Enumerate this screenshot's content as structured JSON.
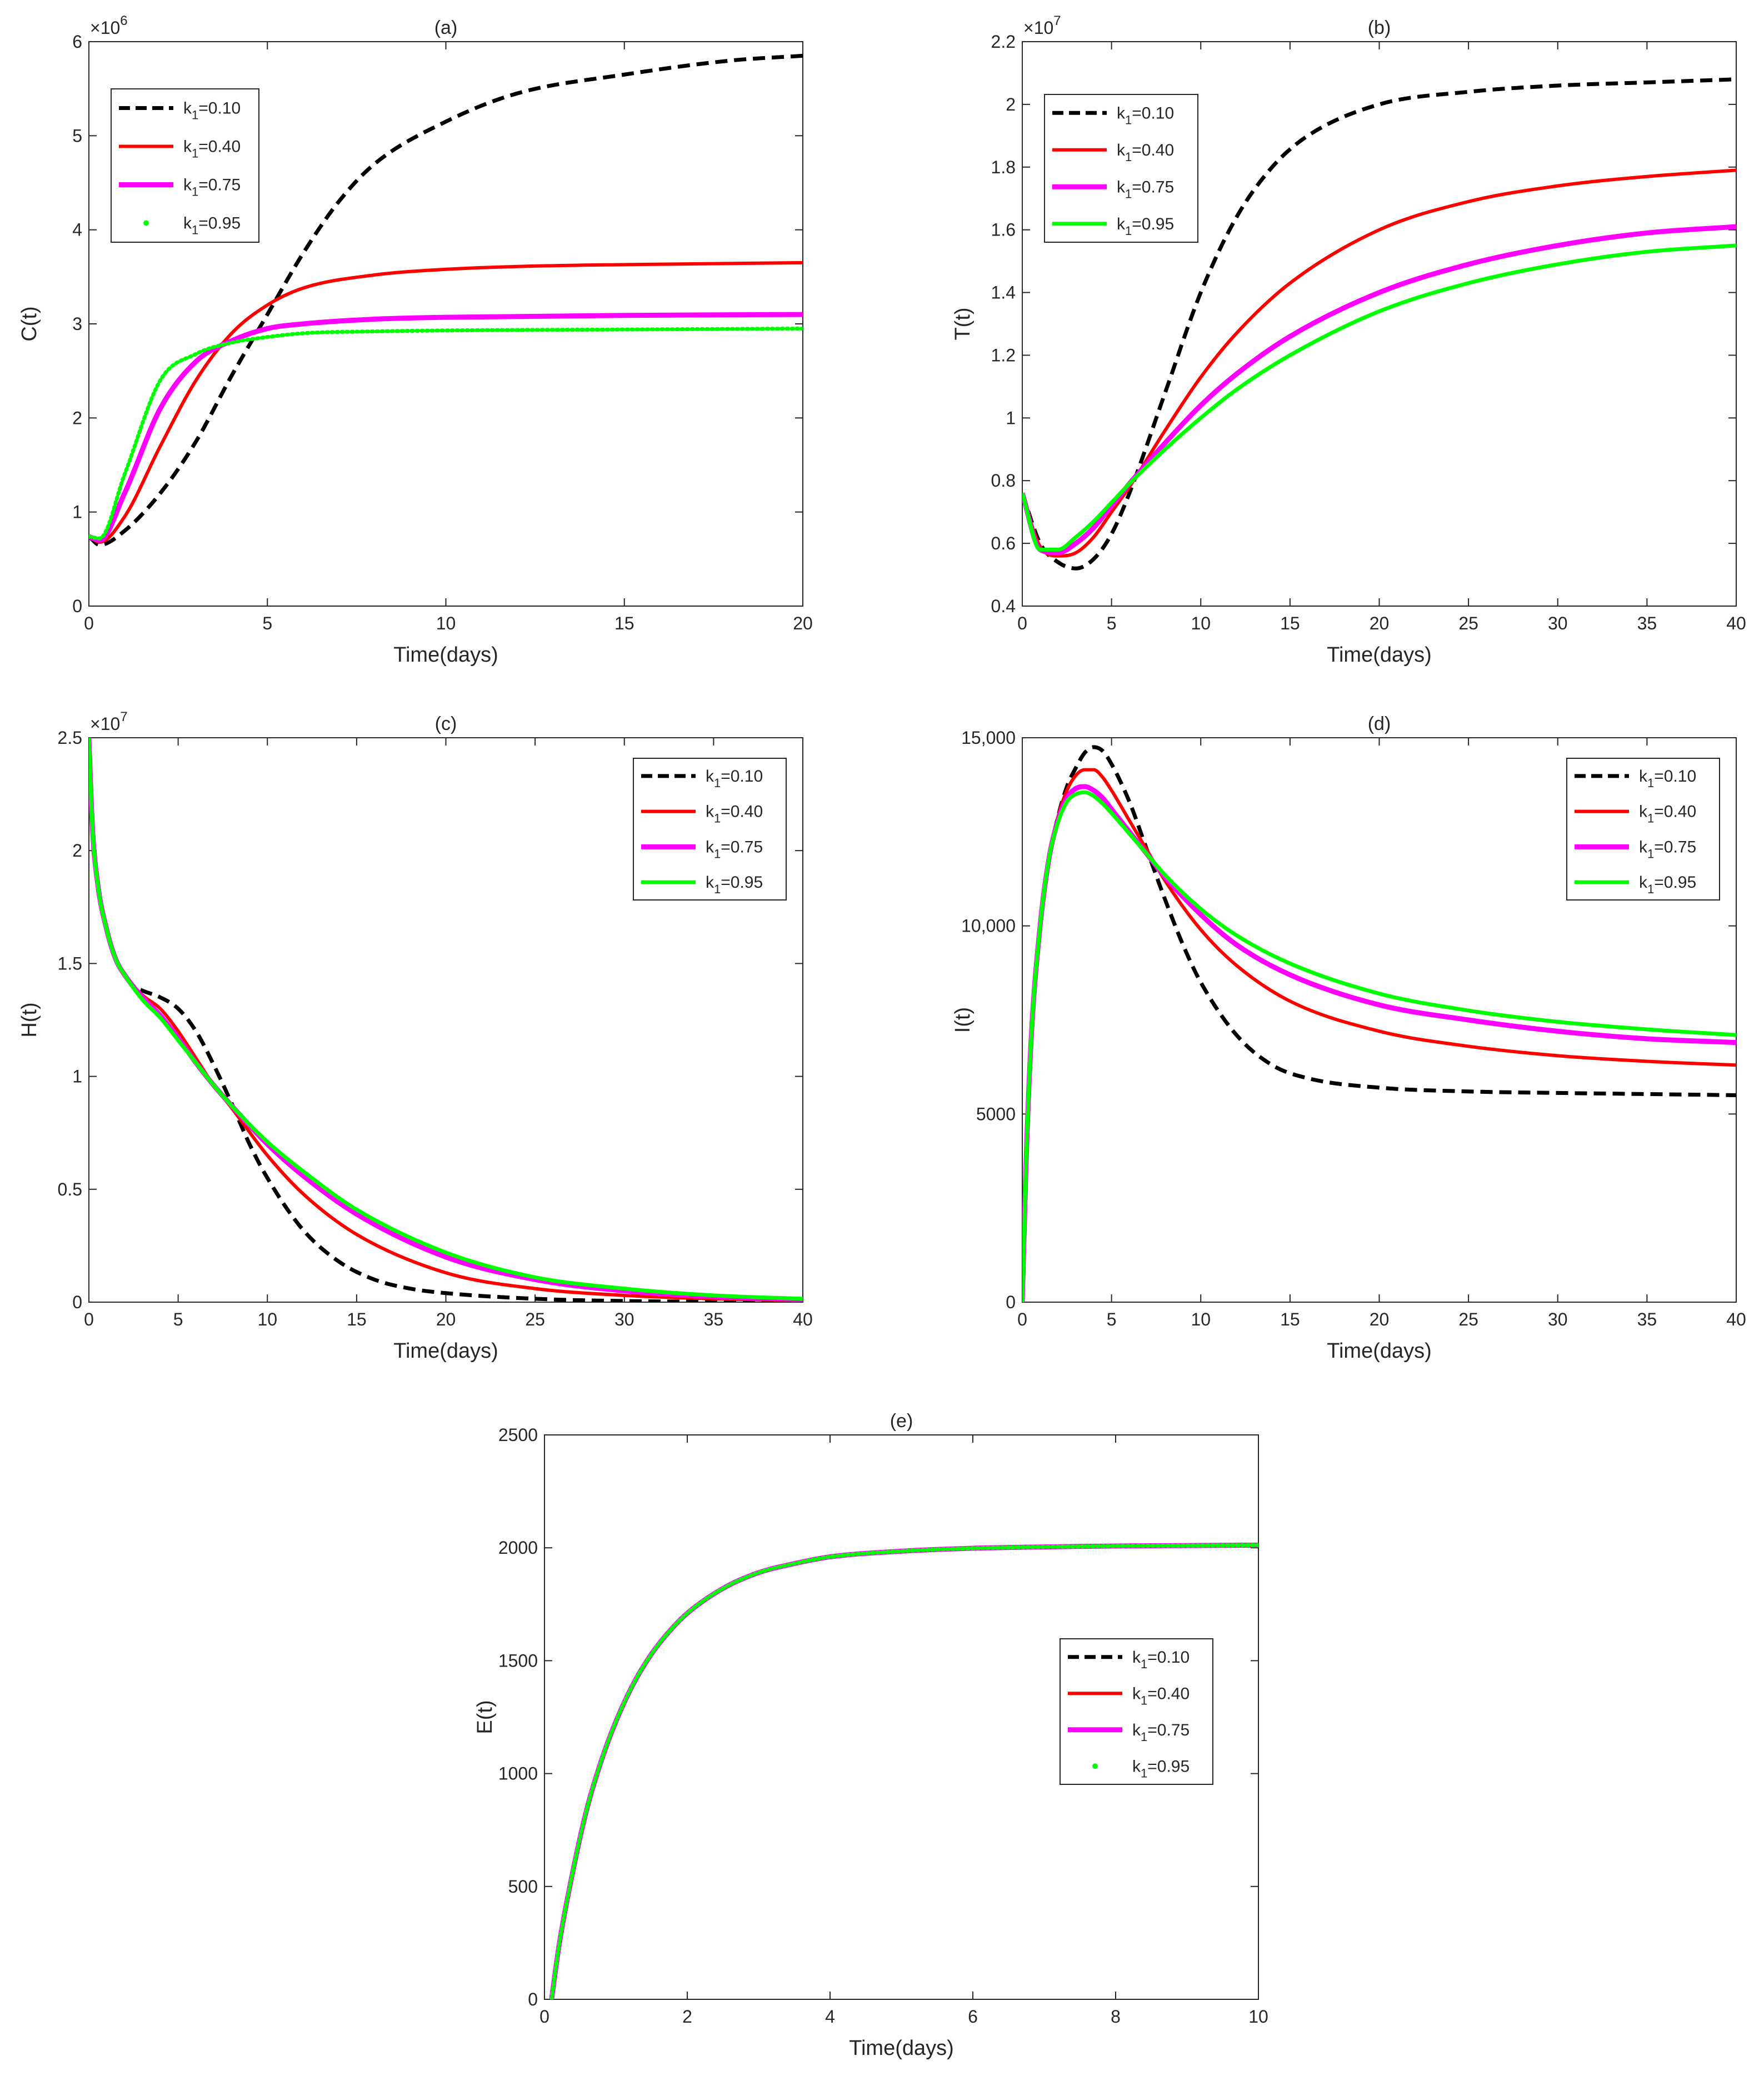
{
  "figure": {
    "x_label": "Time(days)",
    "legend_prefix": "k",
    "legend_subscript": "1"
  },
  "colors": {
    "k1_0.10": "#000000",
    "k1_0.40": "#ff0000",
    "k1_0.75": "#ff00ff",
    "k1_0.95": "#00ff00",
    "axis": "#262626"
  },
  "chart_data": [
    {
      "id": "a",
      "type": "line",
      "title": "(a)",
      "xlabel": "Time(days)",
      "ylabel": "C(t)",
      "xlim": [
        0,
        20
      ],
      "ylim": [
        0,
        6
      ],
      "exponent": "×10",
      "exponent_power": "6",
      "xticks": [
        0,
        5,
        10,
        15,
        20
      ],
      "yticks": [
        0,
        1,
        2,
        3,
        4,
        5,
        6
      ],
      "ytick_labels": [
        "0",
        "1",
        "2",
        "3",
        "4",
        "5",
        "6"
      ],
      "legend_location": "upper-left",
      "series": [
        {
          "name": "k1=0.10",
          "value_label": "=0.10",
          "style": "dashed",
          "x": [
            0,
            0.3,
            1,
            2,
            3,
            4,
            5,
            6,
            7,
            8,
            10,
            12,
            15,
            18,
            20
          ],
          "y": [
            0.74,
            0.65,
            0.8,
            1.2,
            1.75,
            2.45,
            3.1,
            3.75,
            4.3,
            4.7,
            5.15,
            5.45,
            5.65,
            5.8,
            5.85
          ]
        },
        {
          "name": "k1=0.40",
          "value_label": "=0.40",
          "style": "solid",
          "x": [
            0,
            0.3,
            1,
            2,
            3,
            4,
            5,
            6,
            8,
            10,
            12,
            15,
            20
          ],
          "y": [
            0.74,
            0.68,
            0.95,
            1.7,
            2.4,
            2.9,
            3.2,
            3.38,
            3.52,
            3.58,
            3.61,
            3.63,
            3.65
          ]
        },
        {
          "name": "k1=0.75",
          "value_label": "=0.75",
          "style": "solid",
          "x": [
            0,
            0.3,
            1,
            2,
            3,
            4,
            5,
            6,
            8,
            10,
            15,
            20
          ],
          "y": [
            0.74,
            0.7,
            1.2,
            2.1,
            2.6,
            2.82,
            2.95,
            3.0,
            3.05,
            3.07,
            3.09,
            3.1
          ]
        },
        {
          "name": "k1=0.95",
          "value_label": "=0.95",
          "style": "dotted",
          "x": [
            0,
            0.3,
            1,
            2,
            3,
            4,
            5,
            6,
            8,
            10,
            15,
            20
          ],
          "y": [
            0.74,
            0.72,
            1.4,
            2.4,
            2.68,
            2.8,
            2.86,
            2.9,
            2.92,
            2.93,
            2.94,
            2.95
          ]
        }
      ]
    },
    {
      "id": "b",
      "type": "line",
      "title": "(b)",
      "xlabel": "Time(days)",
      "ylabel": "T(t)",
      "xlim": [
        0,
        40
      ],
      "ylim": [
        0.4,
        2.2
      ],
      "exponent": "×10",
      "exponent_power": "7",
      "xticks": [
        0,
        5,
        10,
        15,
        20,
        25,
        30,
        35,
        40
      ],
      "yticks": [
        0.4,
        0.6,
        0.8,
        1,
        1.2,
        1.4,
        1.6,
        1.8,
        2,
        2.2
      ],
      "ytick_labels": [
        "0.4",
        "0.6",
        "0.8",
        "1",
        "1.2",
        "1.4",
        "1.6",
        "1.8",
        "2",
        "2.2"
      ],
      "legend_location": "upper-left",
      "series": [
        {
          "name": "k1=0.10",
          "value_label": "=0.10",
          "style": "dashed",
          "x": [
            0,
            1,
            2,
            3,
            4,
            5,
            6,
            8,
            10,
            12,
            14,
            16,
            20,
            25,
            30,
            35,
            40
          ],
          "y": [
            0.76,
            0.6,
            0.54,
            0.52,
            0.55,
            0.63,
            0.76,
            1.08,
            1.4,
            1.64,
            1.8,
            1.9,
            2.0,
            2.04,
            2.06,
            2.07,
            2.08
          ]
        },
        {
          "name": "k1=0.40",
          "value_label": "=0.40",
          "style": "solid",
          "x": [
            0,
            1,
            2,
            3,
            4,
            5,
            6,
            8,
            10,
            12,
            15,
            20,
            25,
            30,
            35,
            40
          ],
          "y": [
            0.76,
            0.59,
            0.56,
            0.57,
            0.62,
            0.7,
            0.78,
            0.96,
            1.13,
            1.27,
            1.43,
            1.6,
            1.69,
            1.74,
            1.77,
            1.79
          ]
        },
        {
          "name": "k1=0.75",
          "value_label": "=0.75",
          "style": "solid",
          "x": [
            0,
            1,
            2,
            3,
            4,
            5,
            6,
            8,
            10,
            12,
            15,
            20,
            25,
            30,
            35,
            40
          ],
          "y": [
            0.76,
            0.58,
            0.57,
            0.6,
            0.65,
            0.72,
            0.79,
            0.92,
            1.04,
            1.14,
            1.26,
            1.4,
            1.49,
            1.55,
            1.59,
            1.61
          ]
        },
        {
          "name": "k1=0.95",
          "value_label": "=0.95",
          "style": "solid",
          "x": [
            0,
            1,
            2,
            3,
            4,
            5,
            6,
            8,
            10,
            12,
            15,
            20,
            25,
            30,
            35,
            40
          ],
          "y": [
            0.76,
            0.58,
            0.58,
            0.62,
            0.67,
            0.73,
            0.79,
            0.9,
            1.0,
            1.09,
            1.2,
            1.34,
            1.43,
            1.49,
            1.53,
            1.55
          ]
        }
      ]
    },
    {
      "id": "c",
      "type": "line",
      "title": "(c)",
      "xlabel": "Time(days)",
      "ylabel": "H(t)",
      "xlim": [
        0,
        40
      ],
      "ylim": [
        0,
        2.5
      ],
      "exponent": "×10",
      "exponent_power": "7",
      "xticks": [
        0,
        5,
        10,
        15,
        20,
        25,
        30,
        35,
        40
      ],
      "yticks": [
        0,
        0.5,
        1,
        1.5,
        2,
        2.5
      ],
      "ytick_labels": [
        "0",
        "0.5",
        "1",
        "1.5",
        "2",
        "2.5"
      ],
      "legend_location": "upper-right",
      "series": [
        {
          "name": "k1=0.10",
          "value_label": "=0.10",
          "style": "dashed",
          "x": [
            0,
            0.2,
            0.5,
            1,
            1.5,
            2,
            2.5,
            3,
            4,
            5,
            6,
            7,
            8,
            9,
            10,
            12,
            14,
            16,
            18,
            20,
            25,
            30,
            35,
            40
          ],
          "y": [
            2.5,
            2.1,
            1.85,
            1.65,
            1.52,
            1.45,
            1.4,
            1.38,
            1.35,
            1.3,
            1.2,
            1.05,
            0.88,
            0.7,
            0.55,
            0.32,
            0.18,
            0.1,
            0.06,
            0.04,
            0.015,
            0.005,
            0.002,
            0.001
          ]
        },
        {
          "name": "k1=0.40",
          "value_label": "=0.40",
          "style": "solid",
          "x": [
            0,
            0.2,
            0.5,
            1,
            1.5,
            2,
            3,
            4,
            5,
            6,
            7,
            8,
            10,
            12,
            15,
            20,
            25,
            30,
            35,
            40
          ],
          "y": [
            2.5,
            2.1,
            1.85,
            1.65,
            1.52,
            1.45,
            1.36,
            1.3,
            1.2,
            1.08,
            0.96,
            0.86,
            0.65,
            0.48,
            0.3,
            0.13,
            0.06,
            0.03,
            0.015,
            0.008
          ]
        },
        {
          "name": "k1=0.75",
          "value_label": "=0.75",
          "style": "solid",
          "x": [
            0,
            0.2,
            0.5,
            1,
            1.5,
            2,
            3,
            4,
            5,
            6,
            7,
            8,
            10,
            12,
            15,
            20,
            25,
            30,
            35,
            40
          ],
          "y": [
            2.5,
            2.1,
            1.85,
            1.65,
            1.52,
            1.45,
            1.35,
            1.27,
            1.17,
            1.06,
            0.96,
            0.87,
            0.7,
            0.56,
            0.39,
            0.2,
            0.1,
            0.05,
            0.025,
            0.012
          ]
        },
        {
          "name": "k1=0.95",
          "value_label": "=0.95",
          "style": "solid",
          "x": [
            0,
            0.2,
            0.5,
            1,
            1.5,
            2,
            3,
            4,
            5,
            6,
            7,
            8,
            10,
            12,
            15,
            20,
            25,
            30,
            35,
            40
          ],
          "y": [
            2.5,
            2.1,
            1.85,
            1.65,
            1.52,
            1.45,
            1.34,
            1.26,
            1.16,
            1.06,
            0.96,
            0.87,
            0.71,
            0.58,
            0.41,
            0.22,
            0.11,
            0.06,
            0.03,
            0.015
          ]
        }
      ]
    },
    {
      "id": "d",
      "type": "line",
      "title": "(d)",
      "xlabel": "Time(days)",
      "ylabel": "I(t)",
      "xlim": [
        0,
        40
      ],
      "ylim": [
        0,
        15000
      ],
      "exponent": "",
      "exponent_power": "",
      "xticks": [
        0,
        5,
        10,
        15,
        20,
        25,
        30,
        35,
        40
      ],
      "yticks": [
        0,
        5000,
        10000,
        15000
      ],
      "ytick_labels": [
        "0",
        "5000",
        "10,000",
        "15,000"
      ],
      "legend_location": "upper-right",
      "series": [
        {
          "name": "k1=0.10",
          "value_label": "=0.10",
          "style": "dashed",
          "x": [
            0,
            0.2,
            0.5,
            1,
            1.5,
            2,
            2.5,
            3,
            3.5,
            4,
            4.5,
            5,
            6,
            7,
            8,
            9,
            10,
            12,
            14,
            16,
            20,
            25,
            30,
            35,
            40
          ],
          "y": [
            0,
            3500,
            7000,
            10000,
            11800,
            12900,
            13700,
            14200,
            14600,
            14750,
            14650,
            14300,
            13300,
            12000,
            10700,
            9500,
            8500,
            7100,
            6300,
            5950,
            5700,
            5600,
            5560,
            5530,
            5500
          ]
        },
        {
          "name": "k1=0.40",
          "value_label": "=0.40",
          "style": "solid",
          "x": [
            0,
            0.2,
            0.5,
            1,
            1.5,
            2,
            2.5,
            3,
            3.5,
            4,
            4.5,
            5,
            6,
            7,
            8,
            10,
            12,
            15,
            20,
            25,
            30,
            35,
            40
          ],
          "y": [
            0,
            3500,
            7000,
            10000,
            11800,
            12900,
            13600,
            14000,
            14150,
            14150,
            13950,
            13600,
            12800,
            12000,
            11200,
            9900,
            8950,
            8000,
            7200,
            6800,
            6550,
            6400,
            6300
          ]
        },
        {
          "name": "k1=0.75",
          "value_label": "=0.75",
          "style": "solid",
          "x": [
            0,
            0.2,
            0.5,
            1,
            1.5,
            2,
            2.5,
            3,
            3.5,
            4,
            4.5,
            5,
            6,
            7,
            8,
            10,
            12,
            15,
            20,
            25,
            30,
            35,
            40
          ],
          "y": [
            0,
            3500,
            7000,
            10000,
            11800,
            12800,
            13400,
            13650,
            13700,
            13600,
            13400,
            13100,
            12500,
            11900,
            11300,
            10300,
            9500,
            8700,
            7900,
            7500,
            7200,
            7000,
            6900
          ]
        },
        {
          "name": "k1=0.95",
          "value_label": "=0.95",
          "style": "solid",
          "x": [
            0,
            0.2,
            0.5,
            1,
            1.5,
            2,
            2.5,
            3,
            3.5,
            4,
            4.5,
            5,
            6,
            7,
            8,
            10,
            12,
            15,
            20,
            25,
            30,
            35,
            40
          ],
          "y": [
            0,
            3500,
            7000,
            10000,
            11800,
            12750,
            13300,
            13500,
            13550,
            13450,
            13250,
            13000,
            12450,
            11900,
            11350,
            10450,
            9750,
            9000,
            8200,
            7750,
            7450,
            7250,
            7100
          ]
        }
      ]
    },
    {
      "id": "e",
      "type": "line",
      "title": "(e)",
      "xlabel": "Time(days)",
      "ylabel": "E(t)",
      "xlim": [
        0,
        10
      ],
      "ylim": [
        0,
        2500
      ],
      "exponent": "",
      "exponent_power": "",
      "xticks": [
        0,
        2,
        4,
        6,
        8,
        10
      ],
      "yticks": [
        0,
        500,
        1000,
        1500,
        2000,
        2500
      ],
      "ytick_labels": [
        "0",
        "500",
        "1000",
        "1500",
        "2000",
        "2500"
      ],
      "legend_location": "middle-right",
      "series": [
        {
          "name": "k1=0.10",
          "value_label": "=0.10",
          "style": "dashed",
          "x": [
            0.1,
            0.2,
            0.4,
            0.6,
            0.8,
            1,
            1.25,
            1.5,
            1.75,
            2,
            2.5,
            3,
            3.5,
            4,
            5,
            6,
            7,
            8,
            9,
            10
          ],
          "y": [
            0,
            230,
            570,
            850,
            1060,
            1230,
            1400,
            1530,
            1630,
            1710,
            1820,
            1890,
            1930,
            1960,
            1985,
            1998,
            2004,
            2008,
            2010,
            2012
          ]
        },
        {
          "name": "k1=0.40",
          "value_label": "=0.40",
          "style": "solid",
          "x": [
            0.1,
            0.2,
            0.4,
            0.6,
            0.8,
            1,
            1.25,
            1.5,
            1.75,
            2,
            2.5,
            3,
            3.5,
            4,
            5,
            6,
            7,
            8,
            9,
            10
          ],
          "y": [
            0,
            230,
            570,
            850,
            1060,
            1230,
            1400,
            1530,
            1630,
            1710,
            1820,
            1890,
            1930,
            1960,
            1985,
            1998,
            2004,
            2008,
            2010,
            2012
          ]
        },
        {
          "name": "k1=0.75",
          "value_label": "=0.75",
          "style": "solid",
          "x": [
            0.1,
            0.2,
            0.4,
            0.6,
            0.8,
            1,
            1.25,
            1.5,
            1.75,
            2,
            2.5,
            3,
            3.5,
            4,
            5,
            6,
            7,
            8,
            9,
            10
          ],
          "y": [
            0,
            230,
            570,
            850,
            1060,
            1230,
            1400,
            1530,
            1630,
            1710,
            1820,
            1890,
            1930,
            1960,
            1985,
            1998,
            2004,
            2008,
            2010,
            2012
          ]
        },
        {
          "name": "k1=0.95",
          "value_label": "=0.95",
          "style": "dotted",
          "x": [
            0.1,
            0.2,
            0.4,
            0.6,
            0.8,
            1,
            1.25,
            1.5,
            1.75,
            2,
            2.5,
            3,
            3.5,
            4,
            5,
            6,
            7,
            8,
            9,
            10
          ],
          "y": [
            0,
            230,
            570,
            850,
            1060,
            1230,
            1400,
            1530,
            1630,
            1710,
            1820,
            1890,
            1930,
            1960,
            1985,
            1998,
            2004,
            2008,
            2010,
            2012
          ]
        }
      ]
    }
  ]
}
